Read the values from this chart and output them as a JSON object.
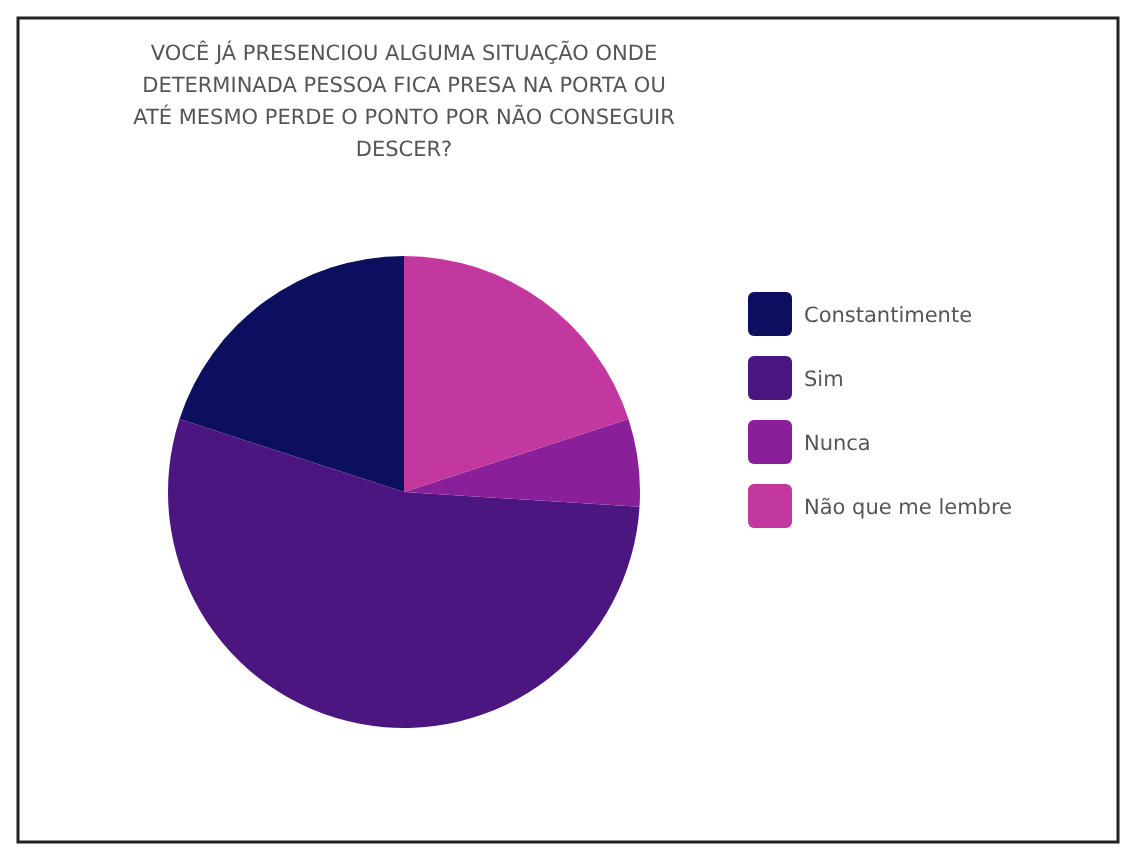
{
  "chart_data": {
    "type": "pie",
    "title": "VOCÊ JÁ PRESENCIOU ALGUMA SITUAÇÃO ONDE DETERMINADA PESSOA FICA PRESA NA PORTA OU ATÉ MESMO PERDE O PONTO POR NÃO CONSEGUIR DESCER?",
    "categories": [
      "Constantimente",
      "Sim",
      "Nunca",
      "Não que me lembre"
    ],
    "values": [
      20,
      54,
      6,
      20
    ],
    "colors": [
      "#0c0f5e",
      "#4b1680",
      "#8a2099",
      "#c2389e"
    ],
    "legend": "right"
  }
}
